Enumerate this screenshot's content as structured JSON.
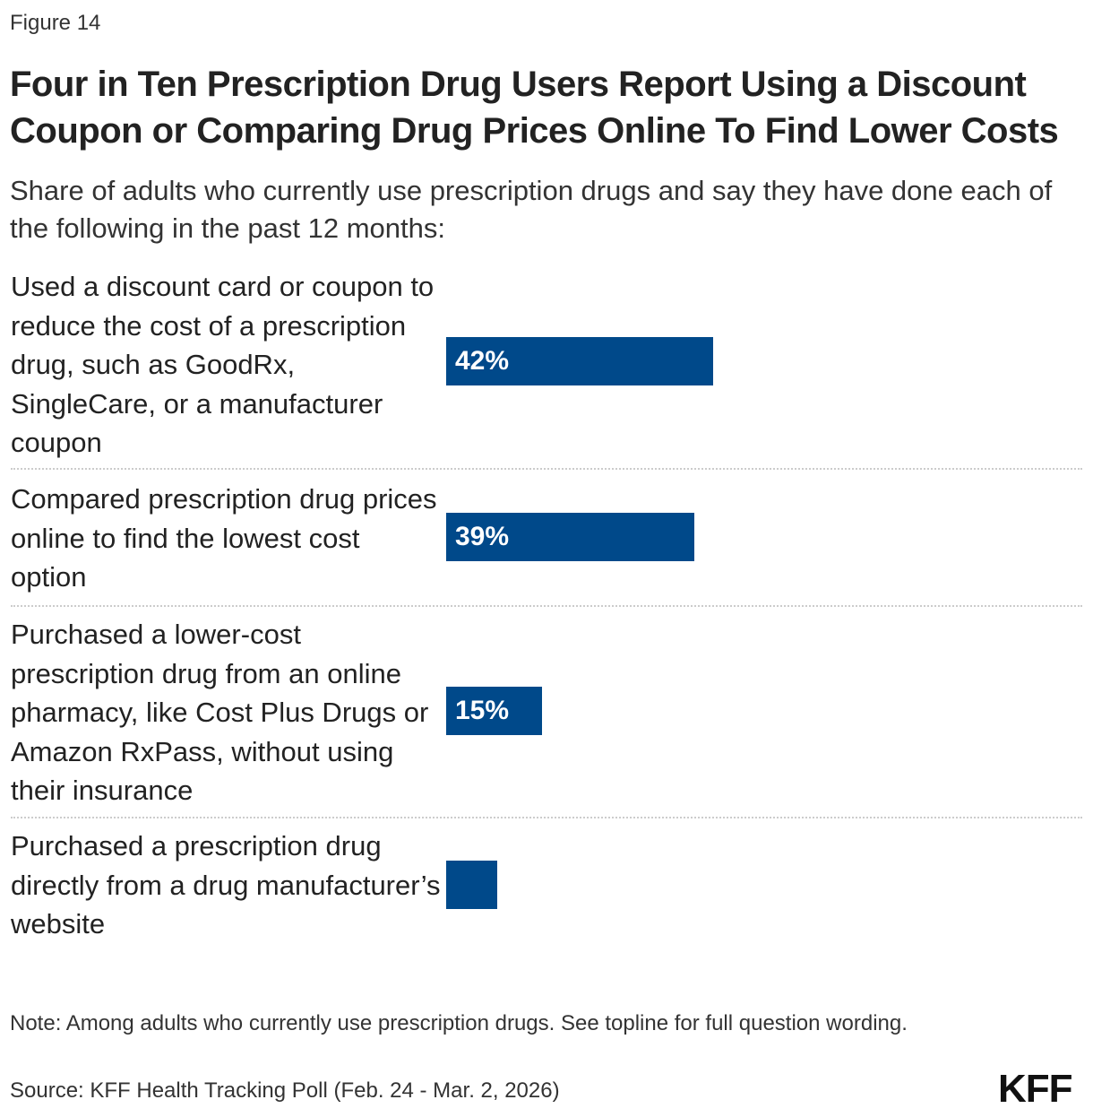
{
  "figure_label": "Figure 14",
  "chart_data": {
    "type": "bar",
    "orientation": "horizontal",
    "title": "Four in Ten Prescription Drug Users Report Using a Discount Coupon or Comparing Drug Prices Online To Find Lower Costs",
    "subtitle": "Share of adults who currently use prescription drugs and say they have done each of the following in the past 12 months:",
    "categories": [
      "Used a discount card or coupon to reduce the cost of a prescription drug, such as GoodRx, SingleCare, or a manufacturer coupon",
      "Compared prescription drug prices online to find the lowest cost option",
      "Purchased a lower-cost prescription drug from an online pharmacy, like Cost Plus Drugs or Amazon RxPass, without using their insurance",
      "Purchased a prescription drug directly from a drug manufacturer’s website"
    ],
    "values": [
      42,
      39,
      15,
      8
    ],
    "data_labels": [
      "42%",
      "39%",
      "15%",
      ""
    ],
    "xlim": [
      0,
      100
    ],
    "grid": false,
    "bar_color": "#00498a"
  },
  "note": "Note: Among adults who currently use prescription drugs. See topline for full question wording.",
  "source": "Source: KFF Health Tracking Poll (Feb. 24 - Mar. 2, 2026)",
  "logo": "KFF"
}
